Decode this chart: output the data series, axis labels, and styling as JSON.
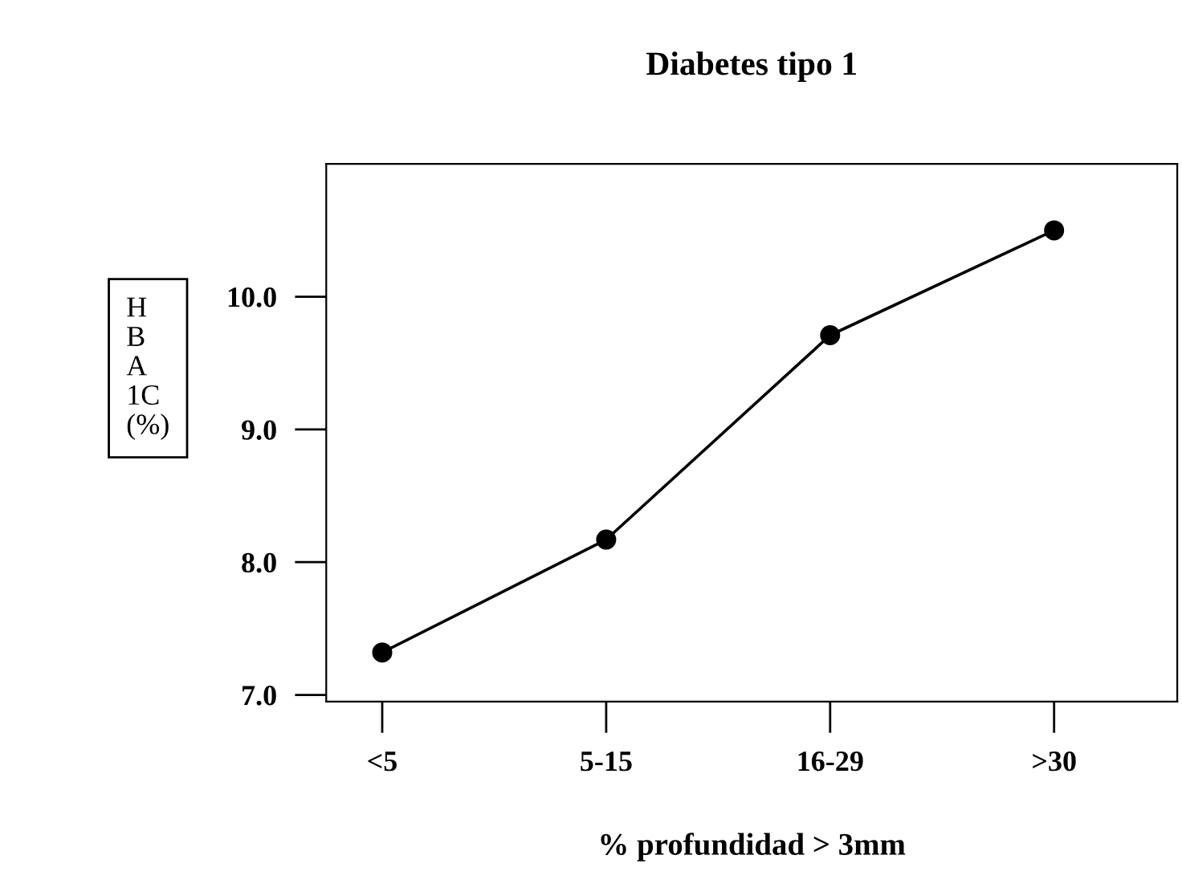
{
  "chart_data": {
    "type": "line",
    "title": "Diabetes tipo 1",
    "xlabel": "% profundidad > 3mm",
    "ylabel": "H\nB\nA\n1C\n(%)",
    "categories": [
      "<5",
      "5-15",
      "16-29",
      ">30"
    ],
    "series": [
      {
        "color": "#000000",
        "values": [
          7.32,
          8.17,
          9.71,
          10.5
        ]
      }
    ],
    "ylim": [
      6.95,
      11.0
    ],
    "yticks": [
      {
        "value": 7,
        "label": "7.0"
      },
      {
        "value": 8,
        "label": "8.0"
      },
      {
        "value": 9,
        "label": "9.0"
      },
      {
        "value": 10,
        "label": "10.0"
      }
    ],
    "marker": "circle",
    "line_style": "solid",
    "grid": false,
    "legend": false
  }
}
